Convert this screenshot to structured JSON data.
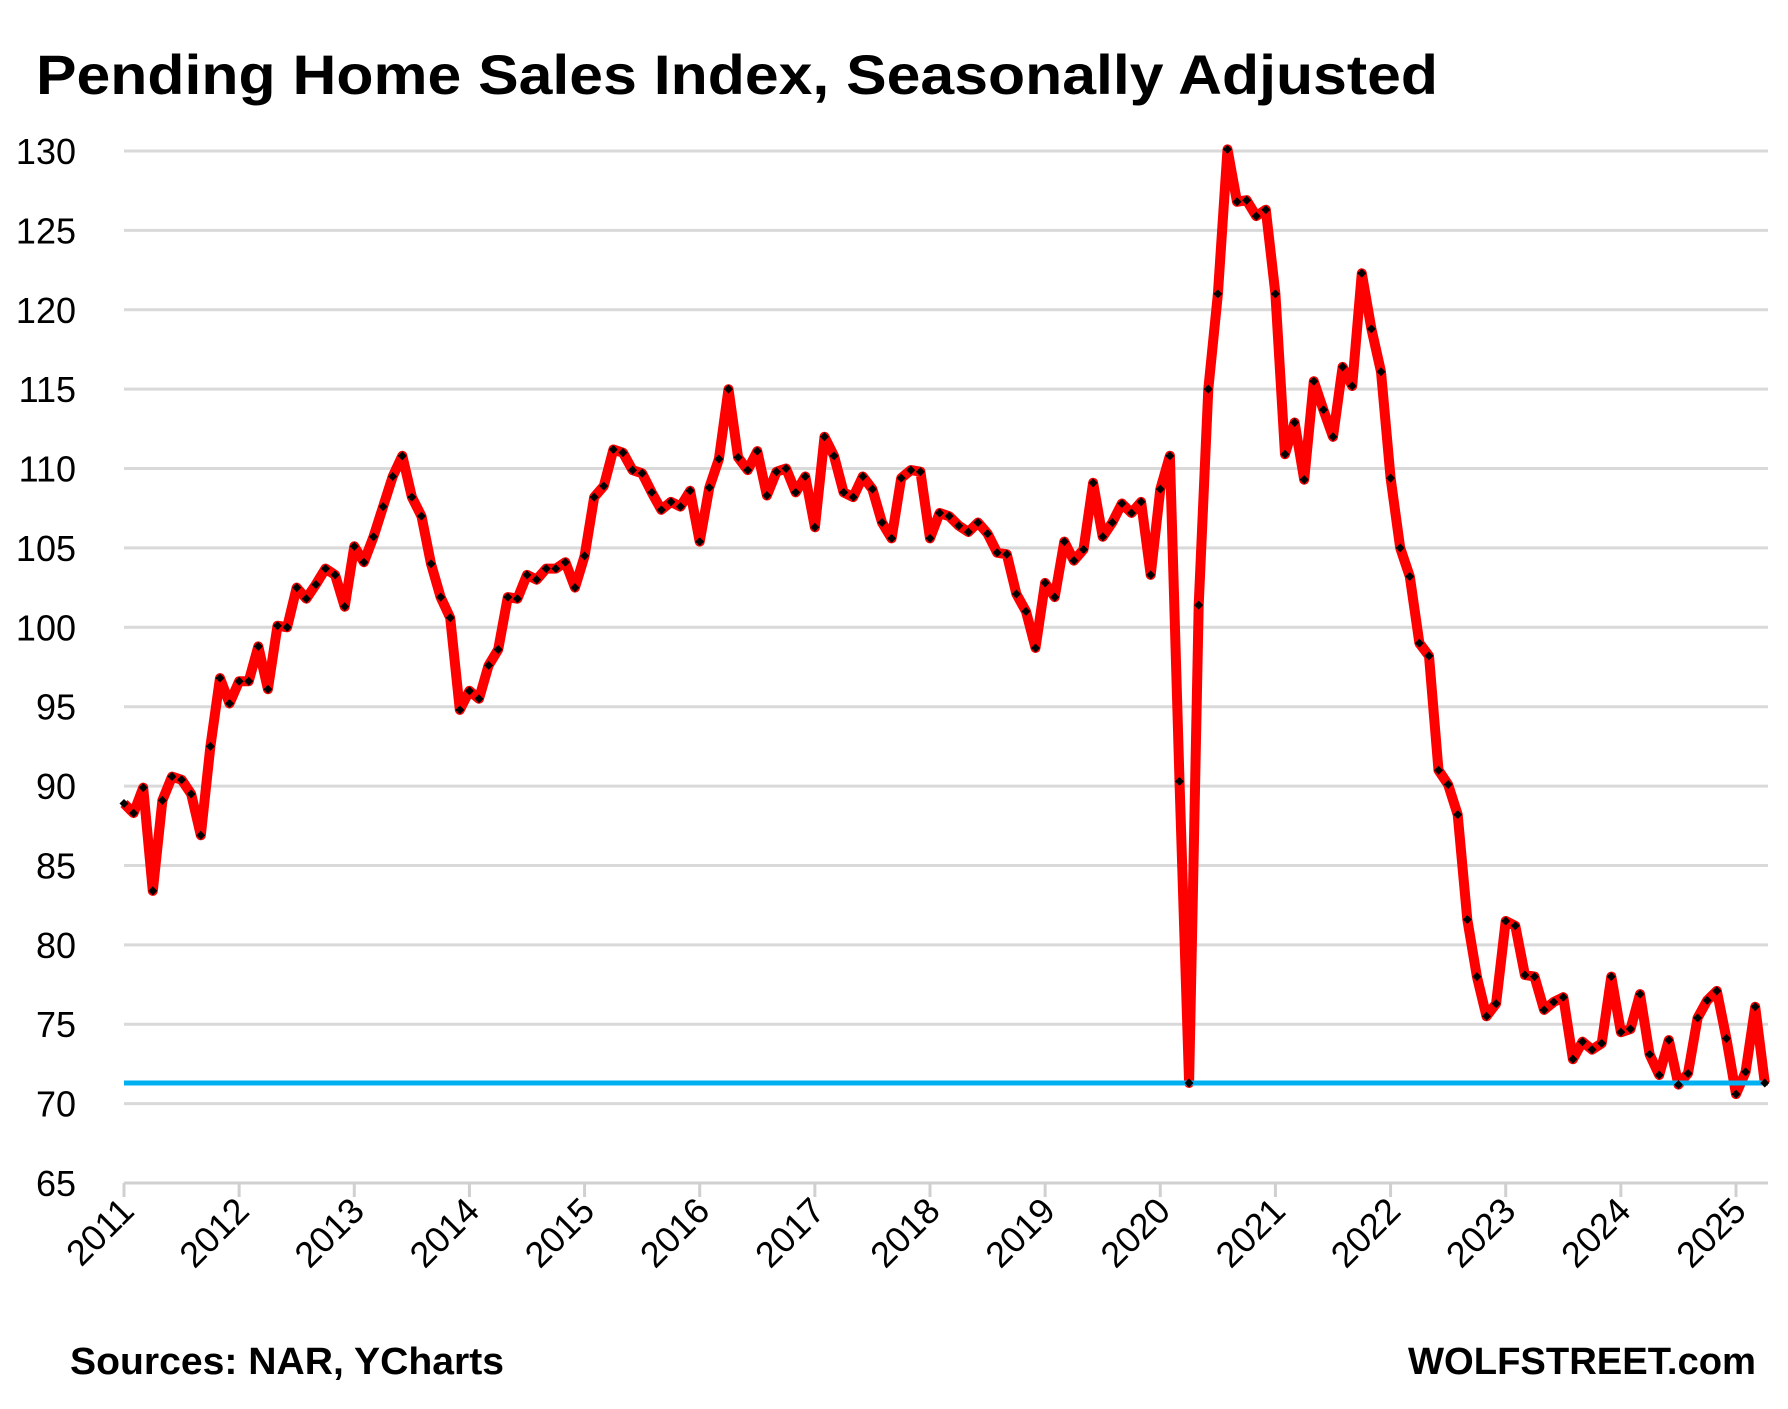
{
  "chart_data": {
    "type": "line",
    "title": "Pending Home Sales Index, Seasonally Adjusted",
    "source": "Sources: NAR, YCharts",
    "watermark": "WOLFSTREET.com",
    "x_start": "2011-01",
    "x_frequency": "monthly",
    "x_tick_labels": [
      "2011",
      "2012",
      "2013",
      "2014",
      "2015",
      "2016",
      "2017",
      "2018",
      "2019",
      "2020",
      "2021",
      "2022",
      "2023",
      "2024",
      "2025"
    ],
    "y_tick_labels": [
      "65",
      "70",
      "75",
      "80",
      "85",
      "90",
      "95",
      "100",
      "105",
      "110",
      "115",
      "120",
      "125",
      "130"
    ],
    "ylim": [
      65,
      130
    ],
    "grid": "horizontal",
    "series": [
      {
        "color": "#FF0000",
        "marker": "diamond",
        "marker_color": "#000000",
        "values": [
          88.9,
          88.3,
          89.9,
          83.4,
          89.1,
          90.6,
          90.4,
          89.5,
          86.9,
          92.5,
          96.8,
          95.2,
          96.6,
          96.6,
          98.8,
          96.1,
          100.1,
          100.0,
          102.5,
          101.8,
          102.7,
          103.7,
          103.3,
          101.3,
          105.1,
          104.1,
          105.7,
          107.6,
          109.5,
          110.8,
          108.2,
          107.0,
          104.0,
          101.9,
          100.6,
          94.8,
          96.0,
          95.5,
          97.6,
          98.6,
          101.9,
          101.8,
          103.3,
          103.0,
          103.7,
          103.7,
          104.1,
          102.5,
          104.5,
          108.2,
          108.9,
          111.2,
          111.0,
          109.9,
          109.7,
          108.5,
          107.4,
          107.9,
          107.6,
          108.6,
          105.4,
          108.8,
          110.6,
          115.0,
          110.7,
          109.9,
          111.1,
          108.3,
          109.8,
          110.0,
          108.5,
          109.5,
          106.3,
          112.0,
          110.8,
          108.5,
          108.2,
          109.5,
          108.7,
          106.6,
          105.6,
          109.4,
          109.9,
          109.8,
          105.6,
          107.2,
          107.0,
          106.4,
          106.0,
          106.6,
          105.9,
          104.7,
          104.6,
          102.1,
          101.0,
          98.7,
          102.8,
          101.9,
          105.4,
          104.2,
          104.9,
          109.1,
          105.7,
          106.6,
          107.8,
          107.2,
          107.9,
          103.3,
          108.7,
          110.8,
          90.3,
          71.3,
          101.4,
          115.0,
          121.0,
          130.1,
          126.8,
          126.9,
          125.9,
          126.3,
          121.0,
          110.9,
          112.9,
          109.3,
          115.5,
          113.7,
          112.0,
          116.4,
          115.2,
          122.3,
          118.8,
          116.1,
          109.4,
          105.0,
          103.2,
          99.0,
          98.2,
          91.0,
          90.1,
          88.2,
          81.6,
          78.0,
          75.5,
          76.3,
          81.5,
          81.2,
          78.1,
          78.0,
          75.9,
          76.4,
          76.7,
          72.8,
          73.9,
          73.4,
          73.8,
          78.0,
          74.5,
          74.7,
          76.9,
          73.1,
          71.8,
          74.0,
          71.2,
          71.9,
          75.4,
          76.5,
          77.1,
          74.1,
          70.6,
          72.0,
          76.1,
          71.3
        ]
      }
    ],
    "reference_line": {
      "value": 71.3,
      "color": "#00B0F0"
    },
    "gridline_color": "#D9D9D9"
  }
}
